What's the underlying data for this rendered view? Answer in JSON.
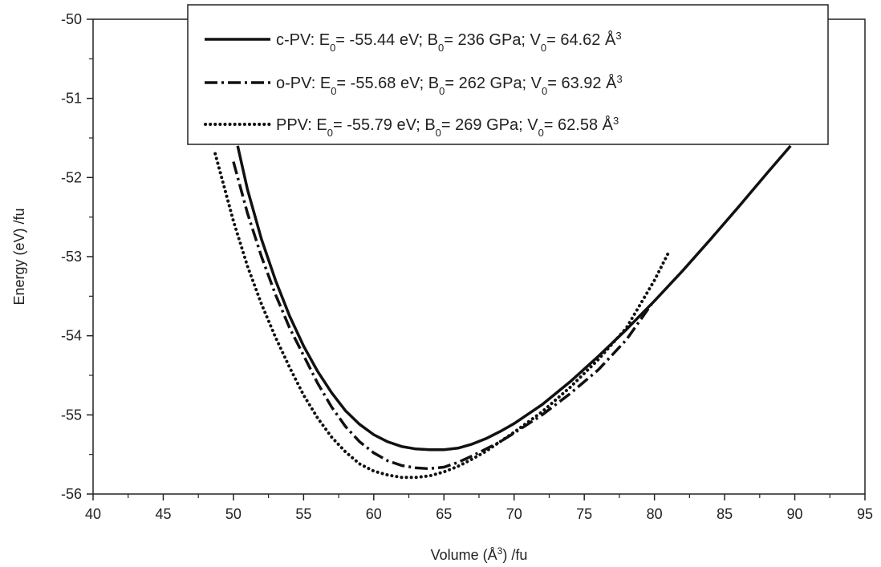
{
  "chart_data": {
    "type": "line",
    "xlabel": {
      "pre": "Volume (Å",
      "sup": "3",
      "post": ") /fu"
    },
    "ylabel": "Energy (eV) /fu",
    "xlim": [
      40,
      95
    ],
    "ylim": [
      -56,
      -50
    ],
    "x_ticks": [
      "40",
      "45",
      "50",
      "55",
      "60",
      "65",
      "70",
      "75",
      "80",
      "85",
      "90",
      "95"
    ],
    "y_ticks": [
      "-50",
      "-51",
      "-52",
      "-53",
      "-54",
      "-55",
      "-56"
    ],
    "grid": false,
    "legend_position": "top-right",
    "series": [
      {
        "key": "c-PV",
        "style": "solid",
        "legend": {
          "name": "c-PV",
          "E0": "-55.44",
          "B0": "236",
          "V0": "64.62"
        },
        "x": [
          50.3,
          51,
          52,
          53,
          54,
          55,
          56,
          57,
          58,
          59,
          60,
          61,
          62,
          63,
          64,
          64.62,
          65,
          66,
          67,
          68,
          69,
          70,
          72,
          74,
          76,
          78,
          80,
          82,
          84,
          86,
          88,
          89.7
        ],
        "y": [
          -51.6,
          -52.15,
          -52.78,
          -53.3,
          -53.75,
          -54.13,
          -54.45,
          -54.72,
          -54.95,
          -55.12,
          -55.25,
          -55.34,
          -55.4,
          -55.43,
          -55.44,
          -55.44,
          -55.44,
          -55.42,
          -55.37,
          -55.3,
          -55.21,
          -55.11,
          -54.87,
          -54.58,
          -54.26,
          -53.92,
          -53.56,
          -53.18,
          -52.78,
          -52.37,
          -51.95,
          -51.6
        ]
      },
      {
        "key": "o-PV",
        "style": "dashdot",
        "legend": {
          "name": "o-PV",
          "E0": "-55.68",
          "B0": "262",
          "V0": "63.92"
        },
        "x": [
          50,
          51,
          52,
          53,
          54,
          55,
          56,
          57,
          58,
          59,
          60,
          61,
          62,
          63,
          63.92,
          65,
          66,
          67,
          68,
          69,
          70,
          72,
          74,
          76,
          78,
          79.8
        ],
        "y": [
          -51.8,
          -52.45,
          -53.0,
          -53.48,
          -53.9,
          -54.25,
          -54.6,
          -54.9,
          -55.15,
          -55.34,
          -55.48,
          -55.58,
          -55.64,
          -55.67,
          -55.68,
          -55.66,
          -55.6,
          -55.52,
          -55.43,
          -55.34,
          -55.23,
          -55.0,
          -54.73,
          -54.43,
          -54.05,
          -53.6
        ]
      },
      {
        "key": "PPV",
        "style": "dotted",
        "legend": {
          "name": "PPV",
          "E0": "-55.79",
          "B0": "269",
          "V0": "62.58"
        },
        "x": [
          48.7,
          50,
          51,
          52,
          53,
          54,
          55,
          56,
          57,
          58,
          59,
          60,
          61,
          62,
          62.58,
          63,
          64,
          65,
          66,
          67,
          68,
          70,
          72,
          74,
          76,
          78,
          80,
          81
        ],
        "y": [
          -51.7,
          -52.55,
          -53.12,
          -53.6,
          -54.02,
          -54.4,
          -54.75,
          -55.04,
          -55.28,
          -55.47,
          -55.62,
          -55.71,
          -55.76,
          -55.79,
          -55.79,
          -55.79,
          -55.77,
          -55.72,
          -55.65,
          -55.56,
          -55.46,
          -55.22,
          -54.96,
          -54.65,
          -54.3,
          -53.9,
          -53.3,
          -52.95
        ]
      }
    ]
  }
}
